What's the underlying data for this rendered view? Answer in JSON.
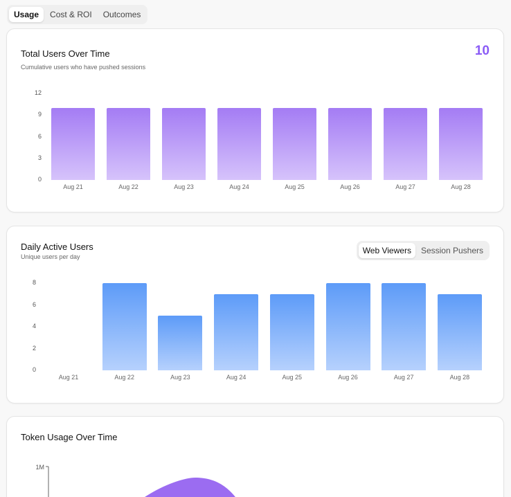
{
  "tabs": [
    {
      "label": "Usage",
      "active": true
    },
    {
      "label": "Cost & ROI",
      "active": false
    },
    {
      "label": "Outcomes",
      "active": false
    }
  ],
  "total_users": {
    "title": "Total Users Over Time",
    "subtitle": "Cumulative users who have pushed sessions",
    "big_number": "10",
    "accent_color": "#8b5cf6"
  },
  "daily_active": {
    "title": "Daily Active Users",
    "subtitle": "Unique users per day",
    "toggle": [
      {
        "label": "Web Viewers",
        "active": true
      },
      {
        "label": "Session Pushers",
        "active": false
      }
    ]
  },
  "token_usage": {
    "title": "Token Usage Over Time",
    "y_tick_top": "1M"
  },
  "chart_data": [
    {
      "type": "bar",
      "categories": [
        "Aug 21",
        "Aug 22",
        "Aug 23",
        "Aug 24",
        "Aug 25",
        "Aug 26",
        "Aug 27",
        "Aug 28"
      ],
      "values": [
        10,
        10,
        10,
        10,
        10,
        10,
        10,
        10
      ],
      "yticks": [
        0,
        3,
        6,
        9,
        12
      ],
      "ylim": [
        0,
        12
      ],
      "color": "#a47cf4"
    },
    {
      "type": "bar",
      "categories": [
        "Aug 21",
        "Aug 22",
        "Aug 23",
        "Aug 24",
        "Aug 25",
        "Aug 26",
        "Aug 27",
        "Aug 28"
      ],
      "values": [
        0,
        8,
        5,
        7,
        7,
        8,
        8,
        7
      ],
      "yticks": [
        0,
        2,
        4,
        6,
        8
      ],
      "ylim": [
        0,
        8
      ],
      "color": "#5d9bf8"
    },
    {
      "type": "area",
      "yticks": [
        "1M"
      ],
      "color": "#9b6cf1"
    }
  ]
}
